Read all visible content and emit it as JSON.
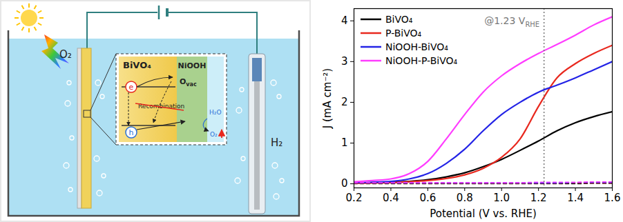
{
  "diagram": {
    "o2_anode": "O₂",
    "h2_cathode": "H₂",
    "bivo4": "BiVO₄",
    "niooh": "NiOOH",
    "ovac": {
      "base": "O",
      "sub": "vac"
    },
    "electron": "e",
    "hole": "h",
    "recombination": "Recombination",
    "h2o": "H₂O",
    "o2_product": "O₂"
  },
  "chart_data": {
    "type": "line",
    "x_label": "Potential (V vs. RHE)",
    "y_label": "J (mA cm⁻²)",
    "x": [
      0.2,
      0.3,
      0.4,
      0.5,
      0.6,
      0.7,
      0.8,
      0.9,
      1.0,
      1.1,
      1.2,
      1.3,
      1.4,
      1.5,
      1.6
    ],
    "series": [
      {
        "name": "BiVO₄",
        "color": "#000000",
        "line_style": "solid",
        "values": [
          0.02,
          0.03,
          0.04,
          0.06,
          0.1,
          0.17,
          0.27,
          0.42,
          0.6,
          0.82,
          1.05,
          1.3,
          1.5,
          1.65,
          1.77
        ],
        "dark_values": [
          0.0,
          0.0,
          0.0,
          0.0,
          0.0,
          0.0,
          0.0,
          0.0,
          0.0,
          0.0,
          0.0,
          0.0,
          0.0,
          0.01,
          0.01
        ]
      },
      {
        "name": "P-BiVO₄",
        "color": "#e8281e",
        "line_style": "solid",
        "values": [
          0.01,
          0.02,
          0.03,
          0.05,
          0.08,
          0.13,
          0.22,
          0.38,
          0.65,
          1.1,
          1.9,
          2.6,
          2.95,
          3.2,
          3.4
        ],
        "dark_values": [
          0.01,
          0.01,
          0.01,
          0.01,
          0.01,
          0.01,
          0.01,
          0.01,
          0.01,
          0.01,
          0.01,
          0.01,
          0.02,
          0.02,
          0.02
        ]
      },
      {
        "name": "NiOOH-BiVO₄",
        "color": "#2323e6",
        "line_style": "solid",
        "values": [
          0.03,
          0.04,
          0.06,
          0.12,
          0.25,
          0.5,
          0.85,
          1.3,
          1.7,
          2.0,
          2.25,
          2.42,
          2.6,
          2.8,
          3.0
        ],
        "dark_values": [
          0.02,
          0.02,
          0.02,
          0.02,
          0.02,
          0.02,
          0.02,
          0.02,
          0.02,
          0.02,
          0.02,
          0.02,
          0.03,
          0.03,
          0.03
        ]
      },
      {
        "name": "NiOOH-P-BiVO₄",
        "color": "#ff3cff",
        "line_style": "solid",
        "values": [
          0.05,
          0.08,
          0.12,
          0.25,
          0.55,
          1.1,
          1.7,
          2.25,
          2.65,
          2.95,
          3.2,
          3.42,
          3.65,
          3.9,
          4.1
        ],
        "dark_values": [
          0.03,
          0.03,
          0.03,
          0.03,
          0.03,
          0.03,
          0.03,
          0.03,
          0.03,
          0.03,
          0.04,
          0.04,
          0.04,
          0.05,
          0.05
        ]
      }
    ],
    "xlim": [
      0.2,
      1.6
    ],
    "ylim": [
      -0.1,
      4.3
    ],
    "xticks": [
      0.2,
      0.4,
      0.6,
      0.8,
      {
        "value": 1.0,
        "label": "1.0"
      },
      1.2,
      1.4,
      1.6
    ],
    "yticks": [
      0,
      1,
      2,
      3,
      4
    ],
    "legend": "top-left",
    "annotations": [
      {
        "x": 1.23,
        "text": "@1.23 V",
        "sub": "RHE",
        "line_style": "dotted"
      }
    ]
  }
}
